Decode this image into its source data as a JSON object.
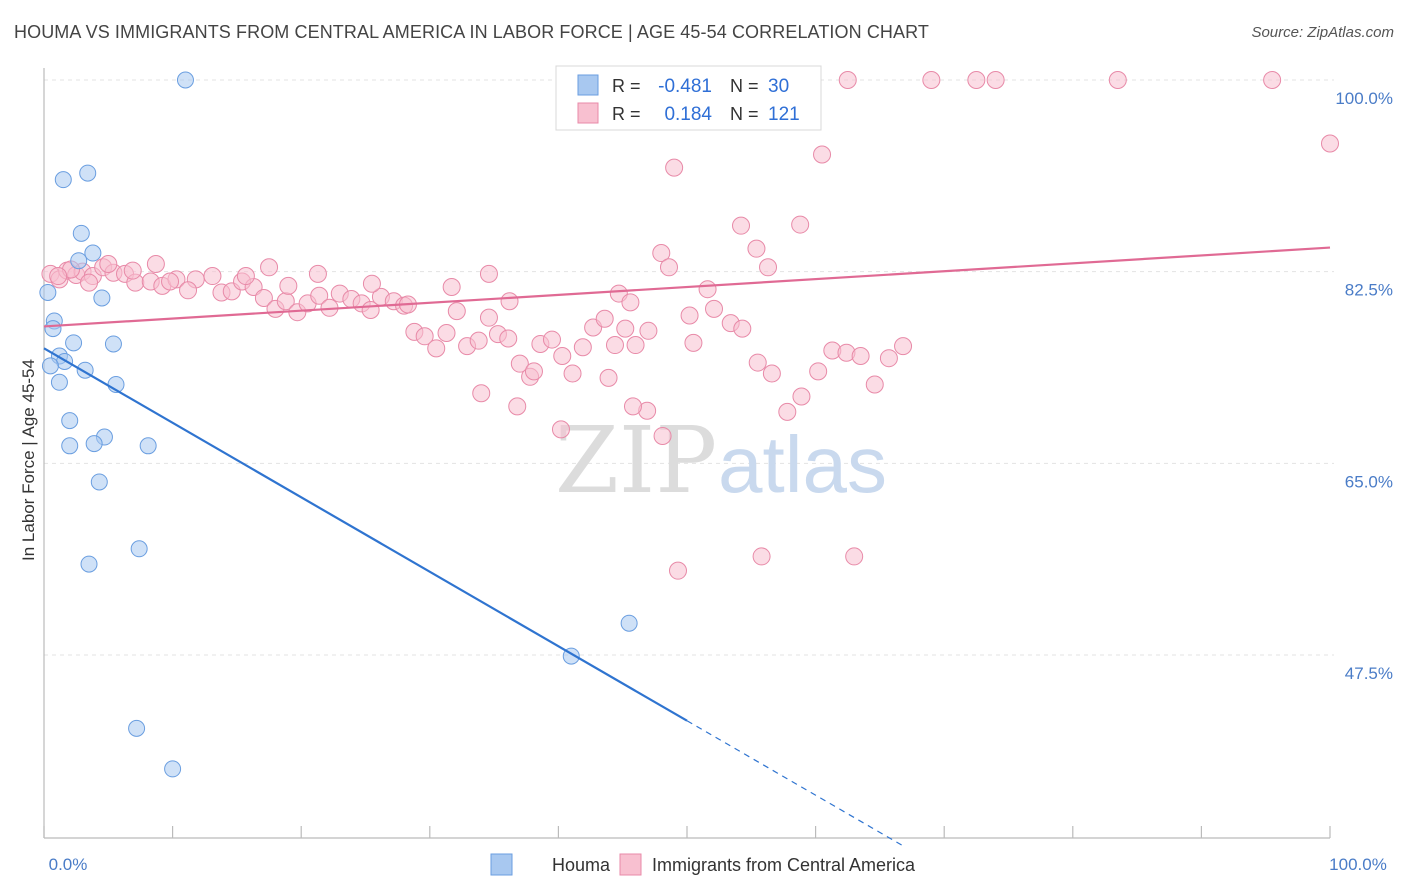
{
  "title": "HOUMA VS IMMIGRANTS FROM CENTRAL AMERICA IN LABOR FORCE | AGE 45-54 CORRELATION CHART",
  "source": "Source: ZipAtlas.com",
  "watermark": {
    "zip": "ZIP",
    "atlas": "atlas"
  },
  "legend": {
    "items": [
      {
        "r_label": "R =",
        "r_value": "-0.481",
        "n_label": "N =",
        "n_value": "30",
        "color": "#a8c8f0",
        "stroke": "#6a9ee0"
      },
      {
        "r_label": "R =",
        "r_value": "0.184",
        "n_label": "N =",
        "n_value": "121",
        "color": "#f8c0d0",
        "stroke": "#e88aa8"
      }
    ]
  },
  "bottom_legend": [
    "Houma",
    "Immigrants from Central America"
  ],
  "chart_data": {
    "type": "scatter",
    "title": "HOUMA VS IMMIGRANTS FROM CENTRAL AMERICA IN LABOR FORCE | AGE 45-54 CORRELATION CHART",
    "xlabel": "",
    "ylabel": "In Labor Force | Age 45-54",
    "xlim": [
      0,
      100
    ],
    "ylim": [
      32,
      102
    ],
    "x_tick_labels": [
      {
        "value": 0,
        "label": "0.0%"
      },
      {
        "value": 100,
        "label": "100.0%"
      }
    ],
    "y_tick_labels": [
      {
        "value": 100,
        "label": "100.0%"
      },
      {
        "value": 82.5,
        "label": "82.5%"
      },
      {
        "value": 65,
        "label": "65.0%"
      },
      {
        "value": 47.5,
        "label": "47.5%"
      }
    ],
    "grid": true,
    "legend_placement": "top-center",
    "series": [
      {
        "name": "Houma",
        "color": "#a8c8f0",
        "stroke": "#6a9ee0",
        "trend_color": "#2f74d0",
        "trend": {
          "x0": 0,
          "y0": 75.5,
          "x1": 50,
          "y1": 41.5,
          "dash_to_x": 67
        },
        "points": [
          [
            11,
            100
          ],
          [
            3.4,
            91.5
          ],
          [
            1.5,
            90.9
          ],
          [
            2.9,
            86
          ],
          [
            3.8,
            84.2
          ],
          [
            2.7,
            83.5
          ],
          [
            0.3,
            80.6
          ],
          [
            4.5,
            80.1
          ],
          [
            0.8,
            78
          ],
          [
            0.7,
            77.3
          ],
          [
            2.3,
            76
          ],
          [
            5.4,
            75.9
          ],
          [
            1.2,
            74.8
          ],
          [
            1.6,
            74.3
          ],
          [
            0.5,
            73.9
          ],
          [
            3.2,
            73.5
          ],
          [
            1.2,
            72.4
          ],
          [
            5.6,
            72.2
          ],
          [
            2,
            68.9
          ],
          [
            4.7,
            67.4
          ],
          [
            3.9,
            66.8
          ],
          [
            2,
            66.6
          ],
          [
            8.1,
            66.6
          ],
          [
            4.3,
            63.3
          ],
          [
            7.4,
            57.2
          ],
          [
            3.5,
            55.8
          ],
          [
            45.5,
            50.4
          ],
          [
            41,
            47.4
          ],
          [
            7.2,
            40.8
          ],
          [
            10,
            37.1
          ]
        ]
      },
      {
        "name": "Immigrants from Central America",
        "color": "#f8c0d0",
        "stroke": "#e88aa8",
        "trend_color": "#e06a94",
        "trend": {
          "x0": 0,
          "y0": 77.5,
          "x1": 100,
          "y1": 84.7
        },
        "points": [
          [
            47.5,
            100
          ],
          [
            49.5,
            100
          ],
          [
            59.5,
            100
          ],
          [
            62.5,
            100
          ],
          [
            69,
            100
          ],
          [
            72.5,
            100
          ],
          [
            74,
            100
          ],
          [
            83.5,
            100
          ],
          [
            95.5,
            100
          ],
          [
            100,
            94.2
          ],
          [
            60.5,
            93.2
          ],
          [
            49,
            92
          ],
          [
            58.8,
            86.8
          ],
          [
            54.2,
            86.7
          ],
          [
            55.4,
            84.6
          ],
          [
            48,
            84.2
          ],
          [
            56.3,
            82.9
          ],
          [
            48.6,
            82.9
          ],
          [
            0.5,
            82.3
          ],
          [
            1.2,
            81.8
          ],
          [
            1.8,
            82.6
          ],
          [
            2.5,
            82.2
          ],
          [
            3,
            82.5
          ],
          [
            3.8,
            82.1
          ],
          [
            4.6,
            82.9
          ],
          [
            5.4,
            82.4
          ],
          [
            6.3,
            82.3
          ],
          [
            7.1,
            81.5
          ],
          [
            8.3,
            81.6
          ],
          [
            9.2,
            81.2
          ],
          [
            10.3,
            81.8
          ],
          [
            11.8,
            81.8
          ],
          [
            13.1,
            82.1
          ],
          [
            13.8,
            80.6
          ],
          [
            14.6,
            80.7
          ],
          [
            15.4,
            81.6
          ],
          [
            16.3,
            81.1
          ],
          [
            17.1,
            80.1
          ],
          [
            18,
            79.1
          ],
          [
            18.8,
            79.8
          ],
          [
            19.7,
            78.8
          ],
          [
            20.5,
            79.6
          ],
          [
            21.4,
            80.3
          ],
          [
            22.2,
            79.2
          ],
          [
            23,
            80.5
          ],
          [
            23.9,
            80
          ],
          [
            24.7,
            79.6
          ],
          [
            25.4,
            79
          ],
          [
            26.2,
            80.2
          ],
          [
            27.2,
            79.8
          ],
          [
            28,
            79.4
          ],
          [
            28.8,
            77
          ],
          [
            29.6,
            76.6
          ],
          [
            30.5,
            75.5
          ],
          [
            31.3,
            76.9
          ],
          [
            32.1,
            78.9
          ],
          [
            32.9,
            75.7
          ],
          [
            33.8,
            76.2
          ],
          [
            34.6,
            78.3
          ],
          [
            35.3,
            76.8
          ],
          [
            36.1,
            76.4
          ],
          [
            37,
            74.1
          ],
          [
            37.8,
            72.9
          ],
          [
            38.6,
            75.9
          ],
          [
            39.5,
            76.3
          ],
          [
            40.3,
            74.8
          ],
          [
            41.1,
            73.2
          ],
          [
            41.9,
            75.6
          ],
          [
            42.7,
            77.4
          ],
          [
            43.6,
            78.2
          ],
          [
            44.4,
            75.8
          ],
          [
            45.2,
            77.3
          ],
          [
            46,
            75.8
          ],
          [
            47,
            77.1
          ],
          [
            34,
            71.4
          ],
          [
            36.8,
            70.2
          ],
          [
            38.1,
            73.4
          ],
          [
            40.2,
            68.1
          ],
          [
            43.9,
            72.8
          ],
          [
            44.7,
            80.5
          ],
          [
            45.6,
            79.7
          ],
          [
            46.9,
            69.8
          ],
          [
            45.8,
            70.2
          ],
          [
            48.1,
            67.5
          ],
          [
            50.5,
            76
          ],
          [
            51.6,
            80.9
          ],
          [
            52.1,
            79.1
          ],
          [
            53.4,
            77.8
          ],
          [
            54.3,
            77.3
          ],
          [
            55.5,
            74.2
          ],
          [
            56.6,
            73.2
          ],
          [
            57.8,
            69.7
          ],
          [
            58.9,
            71.1
          ],
          [
            60.2,
            73.4
          ],
          [
            61.3,
            75.3
          ],
          [
            62.4,
            75.1
          ],
          [
            63.5,
            74.8
          ],
          [
            64.6,
            72.2
          ],
          [
            65.7,
            74.6
          ],
          [
            66.8,
            75.7
          ],
          [
            36.2,
            79.8
          ],
          [
            31.7,
            81.1
          ],
          [
            28.3,
            79.5
          ],
          [
            34.6,
            82.3
          ],
          [
            25.5,
            81.4
          ],
          [
            21.3,
            82.3
          ],
          [
            19,
            81.2
          ],
          [
            17.5,
            82.9
          ],
          [
            15.7,
            82.1
          ],
          [
            11.2,
            80.8
          ],
          [
            9.8,
            81.6
          ],
          [
            8.7,
            83.2
          ],
          [
            6.9,
            82.6
          ],
          [
            5,
            83.2
          ],
          [
            3.5,
            81.5
          ],
          [
            2.1,
            82.7
          ],
          [
            1.1,
            82.1
          ],
          [
            50.2,
            78.5
          ],
          [
            49.3,
            55.2
          ],
          [
            55.8,
            56.5
          ],
          [
            63,
            56.5
          ]
        ]
      }
    ]
  }
}
